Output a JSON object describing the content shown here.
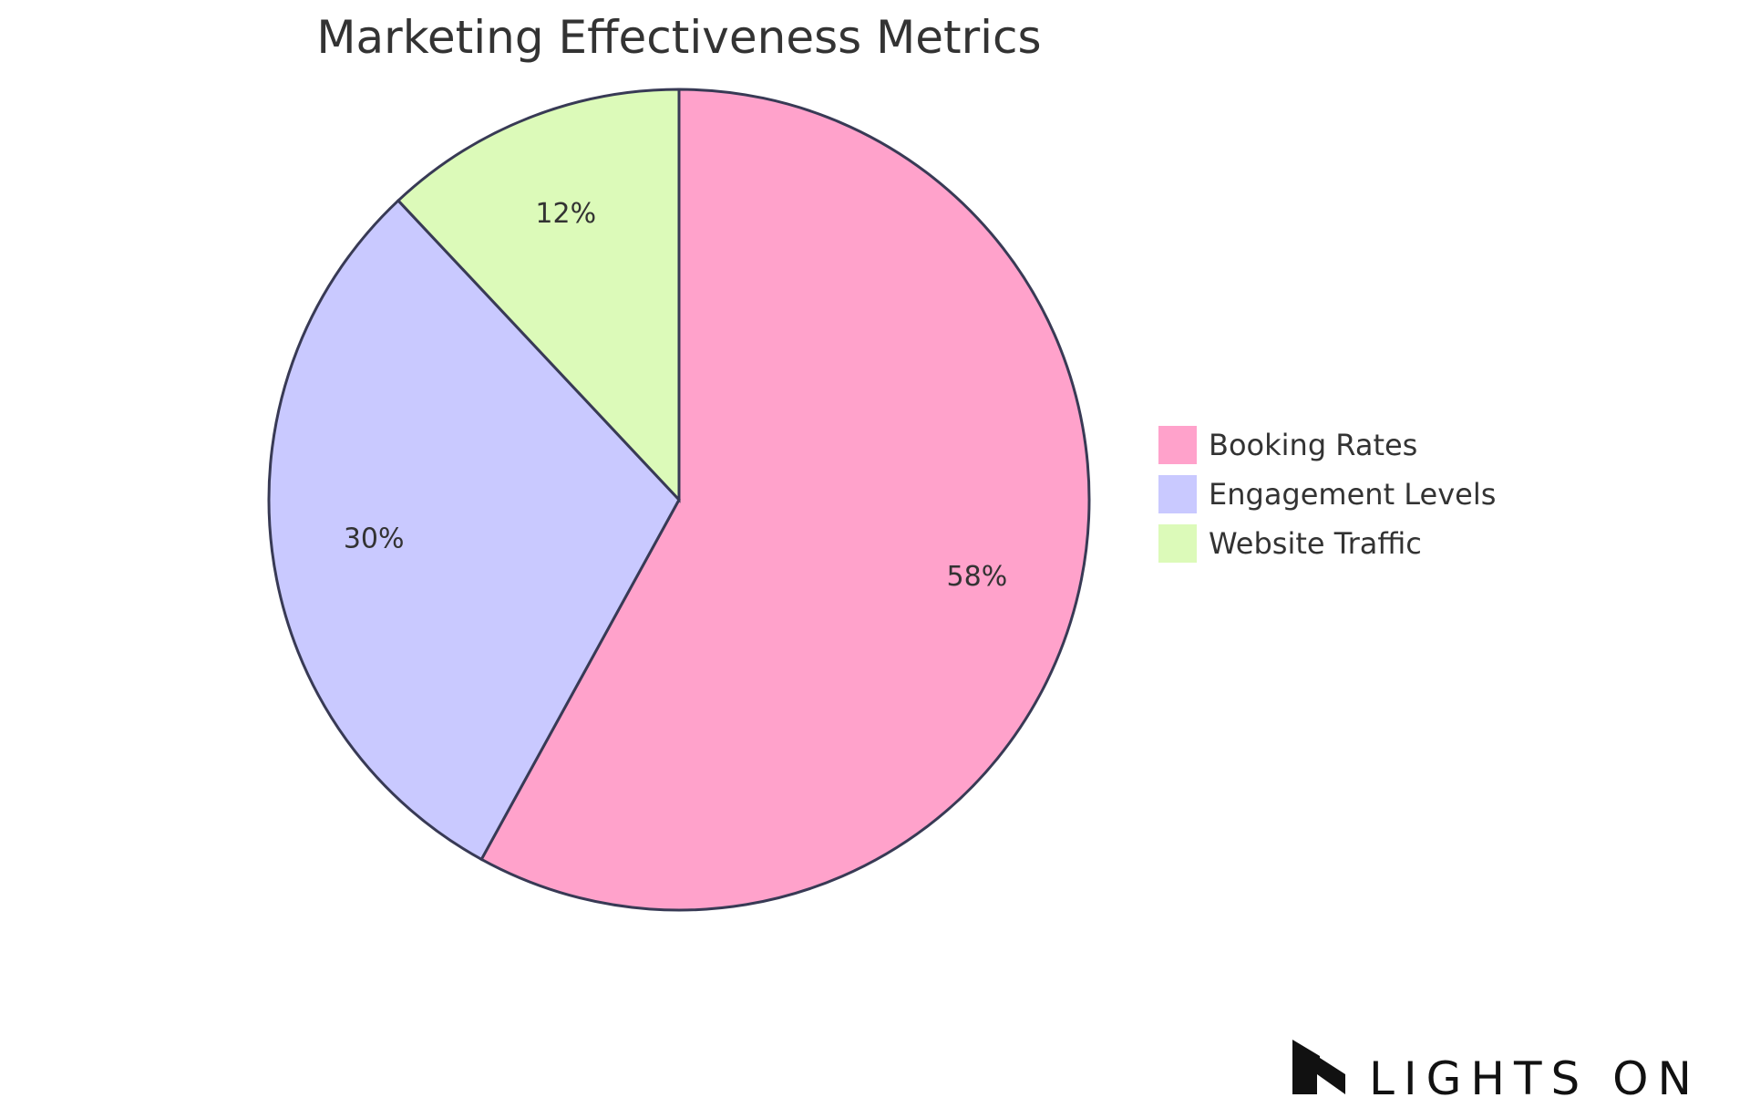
{
  "chart_data": {
    "type": "pie",
    "title": "Marketing Effectiveness Metrics",
    "slices": [
      {
        "label": "Booking Rates",
        "value": 58,
        "display": "58%",
        "color": "#ffa2cb"
      },
      {
        "label": "Engagement Levels",
        "value": 30,
        "display": "30%",
        "color": "#c9c9ff"
      },
      {
        "label": "Website Traffic",
        "value": 12,
        "display": "12%",
        "color": "#dcfab9"
      }
    ],
    "legend_position": "right"
  },
  "brand": {
    "name": "LIGHTS ON",
    "logo_icon": "lights-on-logo-icon"
  }
}
